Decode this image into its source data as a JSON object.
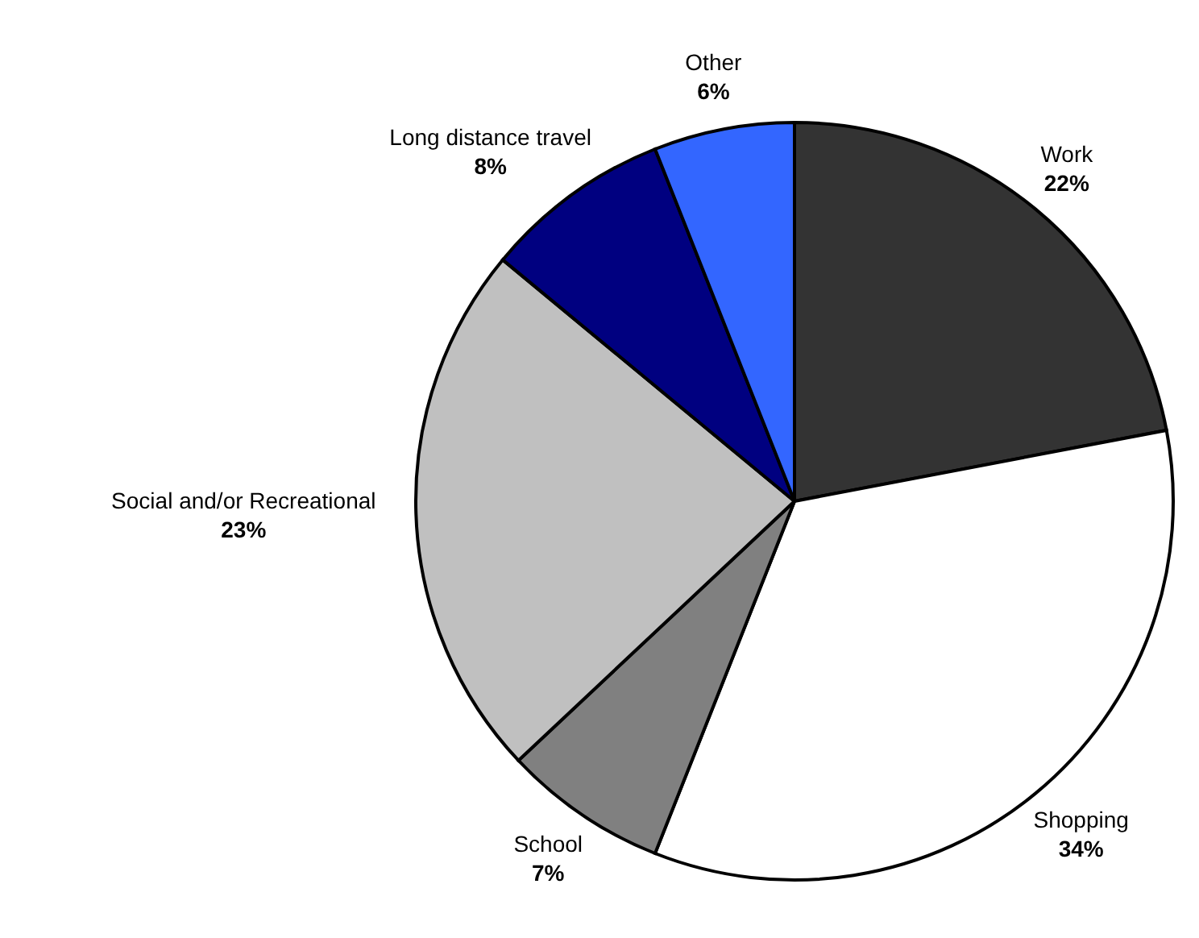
{
  "chart_data": {
    "type": "pie",
    "categories": [
      "Work",
      "Shopping",
      "School",
      "Social and/or Recreational",
      "Long distance travel",
      "Other"
    ],
    "values": [
      22,
      34,
      7,
      23,
      8,
      6
    ],
    "colors": [
      "#333333",
      "#ffffff",
      "#808080",
      "#c0c0c0",
      "#000080",
      "#3366ff"
    ],
    "value_labels": [
      "22%",
      "34%",
      "7%",
      "23%",
      "8%",
      "6%"
    ]
  }
}
